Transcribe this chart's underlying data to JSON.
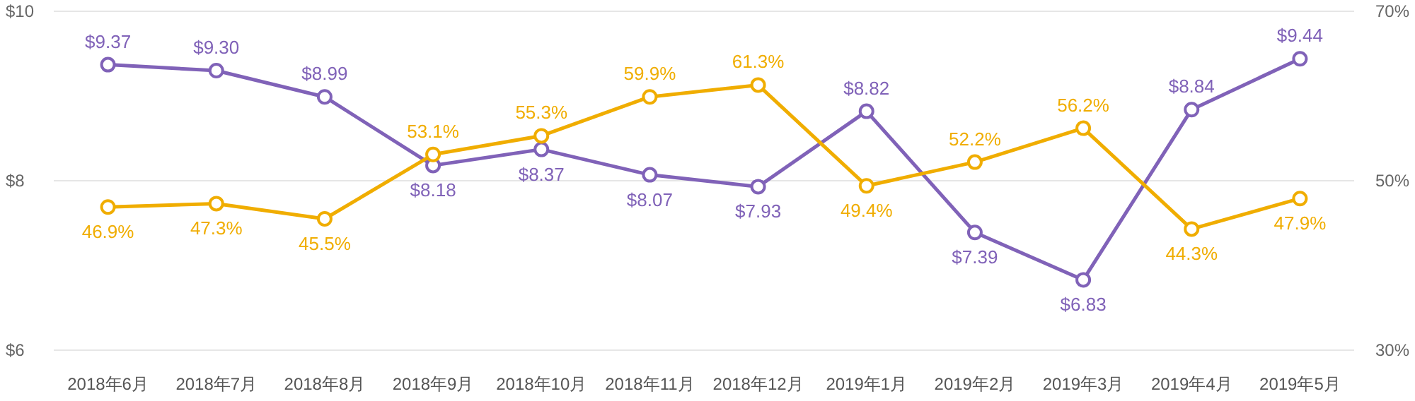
{
  "chart_data": {
    "type": "line",
    "categories": [
      "2018年6月",
      "2018年7月",
      "2018年8月",
      "2018年9月",
      "2018年10月",
      "2018年11月",
      "2018年12月",
      "2019年1月",
      "2019年2月",
      "2019年3月",
      "2019年4月",
      "2019年5月"
    ],
    "series": [
      {
        "color": "#8062b8",
        "values": [
          9.37,
          9.3,
          8.99,
          8.18,
          8.37,
          8.07,
          7.93,
          8.82,
          7.39,
          6.83,
          8.84,
          9.44
        ],
        "value_labels": [
          "$9.37",
          "$9.30",
          "$8.99",
          "$8.18",
          "$8.37",
          "$8.07",
          "$7.93",
          "$8.82",
          "$7.39",
          "$6.83",
          "$8.84",
          "$9.44"
        ]
      },
      {
        "color": "#f0ad00",
        "axis": "y2",
        "values": [
          46.9,
          47.3,
          45.5,
          53.1,
          55.3,
          59.9,
          61.3,
          49.4,
          52.2,
          56.2,
          44.3,
          47.9
        ],
        "value_labels": [
          "46.9%",
          "47.3%",
          "45.5%",
          "53.1%",
          "55.3%",
          "59.9%",
          "61.3%",
          "49.4%",
          "52.2%",
          "56.2%",
          "44.3%",
          "47.9%"
        ]
      }
    ],
    "ylim": [
      6,
      10
    ],
    "yticks": [
      {
        "value": 6,
        "label": "$6"
      },
      {
        "value": 8,
        "label": "$8"
      },
      {
        "value": 10,
        "label": "$10"
      }
    ],
    "y2lim": [
      30,
      70
    ],
    "y2ticks": [
      {
        "value": 30,
        "label": "30%"
      },
      {
        "value": 50,
        "label": "50%"
      },
      {
        "value": 70,
        "label": "70%"
      }
    ],
    "grid": "y",
    "marker": "circle",
    "line_style": "solid"
  }
}
